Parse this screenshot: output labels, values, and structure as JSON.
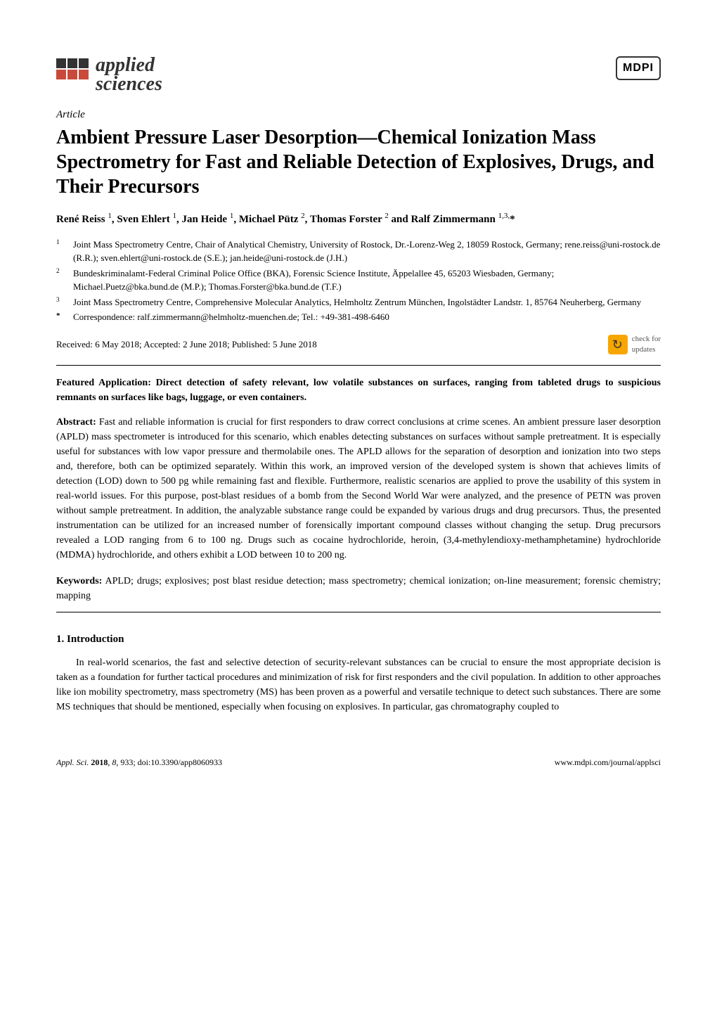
{
  "journal": {
    "name_line1": "applied",
    "name_line2": "sciences",
    "publisher": "MDPI"
  },
  "article_type": "Article",
  "title": "Ambient Pressure Laser Desorption—Chemical Ionization Mass Spectrometry for Fast and Reliable Detection of Explosives, Drugs, and Their Precursors",
  "authors_html": "René Reiss <sup>1</sup>, Sven Ehlert <sup>1</sup>, Jan Heide <sup>1</sup>, Michael Pütz <sup>2</sup>, Thomas Forster <sup>2</sup> and Ralf Zimmermann <sup>1,3,</sup>*",
  "affiliations": [
    {
      "num": "1",
      "text": "Joint Mass Spectrometry Centre, Chair of Analytical Chemistry, University of Rostock, Dr.-Lorenz-Weg 2, 18059 Rostock, Germany; rene.reiss@uni-rostock.de (R.R.); sven.ehlert@uni-rostock.de (S.E.); jan.heide@uni-rostock.de (J.H.)"
    },
    {
      "num": "2",
      "text": "Bundeskriminalamt-Federal Criminal Police Office (BKA), Forensic Science Institute, Äppelallee 45, 65203 Wiesbaden, Germany; Michael.Puetz@bka.bund.de (M.P.); Thomas.Forster@bka.bund.de (T.F.)"
    },
    {
      "num": "3",
      "text": "Joint Mass Spectrometry Centre, Comprehensive Molecular Analytics, Helmholtz Zentrum München, Ingolstädter Landstr. 1, 85764 Neuherberg, Germany"
    },
    {
      "num": "*",
      "text": "Correspondence: ralf.zimmermann@helmholtz-muenchen.de; Tel.: +49-381-498-6460"
    }
  ],
  "dates": "Received: 6 May 2018; Accepted: 2 June 2018; Published: 5 June 2018",
  "updates_badge": {
    "line1": "check for",
    "line2": "updates"
  },
  "featured_app": "Featured Application: Direct detection of safety relevant, low volatile substances on surfaces, ranging from tableted drugs to suspicious remnants on surfaces like bags, luggage, or even containers.",
  "abstract_label": "Abstract:",
  "abstract_text": " Fast and reliable information is crucial for first responders to draw correct conclusions at crime scenes. An ambient pressure laser desorption (APLD) mass spectrometer is introduced for this scenario, which enables detecting substances on surfaces without sample pretreatment. It is especially useful for substances with low vapor pressure and thermolabile ones. The APLD allows for the separation of desorption and ionization into two steps and, therefore, both can be optimized separately. Within this work, an improved version of the developed system is shown that achieves limits of detection (LOD) down to 500 pg while remaining fast and flexible. Furthermore, realistic scenarios are applied to prove the usability of this system in real-world issues. For this purpose, post-blast residues of a bomb from the Second World War were analyzed, and the presence of PETN was proven without sample pretreatment. In addition, the analyzable substance range could be expanded by various drugs and drug precursors. Thus, the presented instrumentation can be utilized for an increased number of forensically important compound classes without changing the setup. Drug precursors revealed a LOD ranging from 6 to 100 ng. Drugs such as cocaine hydrochloride, heroin, (3,4-methylendioxy-methamphetamine) hydrochloride (MDMA) hydrochloride, and others exhibit a LOD between 10 to 200 ng.",
  "keywords_label": "Keywords:",
  "keywords_text": " APLD; drugs; explosives; post blast residue detection; mass spectrometry; chemical ionization; on-line measurement; forensic chemistry; mapping",
  "section_heading": "1. Introduction",
  "intro_text": "In real-world scenarios, the fast and selective detection of security-relevant substances can be crucial to ensure the most appropriate decision is taken as a foundation for further tactical procedures and minimization of risk for first responders and the civil population. In addition to other approaches like ion mobility spectrometry, mass spectrometry (MS) has been proven as a powerful and versatile technique to detect such substances. There are some MS techniques that should be mentioned, especially when focusing on explosives. In particular, gas chromatography coupled to",
  "footer": {
    "left_citation": "Appl. Sci. 2018, 8, 933; doi:10.3390/app8060933",
    "right_url": "www.mdpi.com/journal/applsci"
  },
  "colors": {
    "text": "#000000",
    "background": "#ffffff",
    "logo_accent": "#c94a3b",
    "updates_badge": "#f7a600"
  },
  "typography": {
    "title_fontsize": 28,
    "body_fontsize": 14,
    "affil_fontsize": 13,
    "footer_fontsize": 12
  }
}
